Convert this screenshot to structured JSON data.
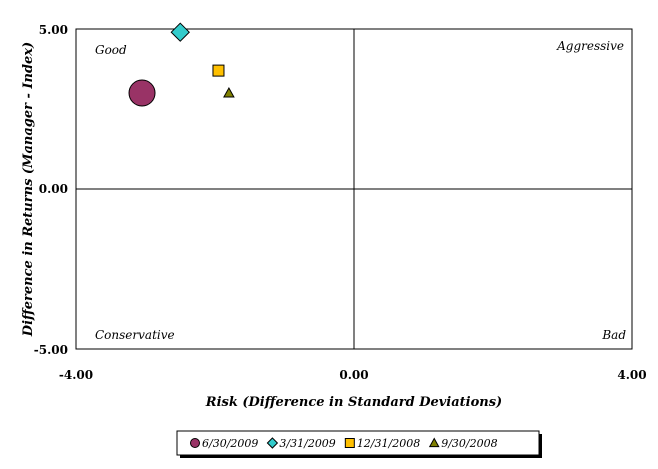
{
  "chart_data": {
    "type": "scatter",
    "xlabel": "Risk (Difference in Standard Deviations)",
    "ylabel": "Difference in Returns (Manager - Index)",
    "xlim": [
      -4,
      4
    ],
    "ylim": [
      -5,
      5
    ],
    "x_ticks": [
      "-4.00",
      "0.00",
      "4.00"
    ],
    "y_ticks": [
      "5.00",
      "0.00",
      "-5.00"
    ],
    "quadrant_labels": {
      "top_left": "Good",
      "top_right": "Aggressive",
      "bottom_left": "Conservative",
      "bottom_right": "Bad"
    },
    "grid": false,
    "legend_position": "bottom",
    "series": [
      {
        "name": "6/30/2009",
        "marker": "circle",
        "color": "#993366",
        "x": -3.05,
        "y": 3.0
      },
      {
        "name": "3/31/2009",
        "marker": "diamond",
        "color": "#33CCCC",
        "x": -2.5,
        "y": 4.9
      },
      {
        "name": "12/31/2008",
        "marker": "square",
        "color": "#FFC000",
        "x": -1.95,
        "y": 3.7
      },
      {
        "name": "9/30/2008",
        "marker": "triangle",
        "color": "#808000",
        "x": -1.8,
        "y": 3.0
      }
    ]
  }
}
